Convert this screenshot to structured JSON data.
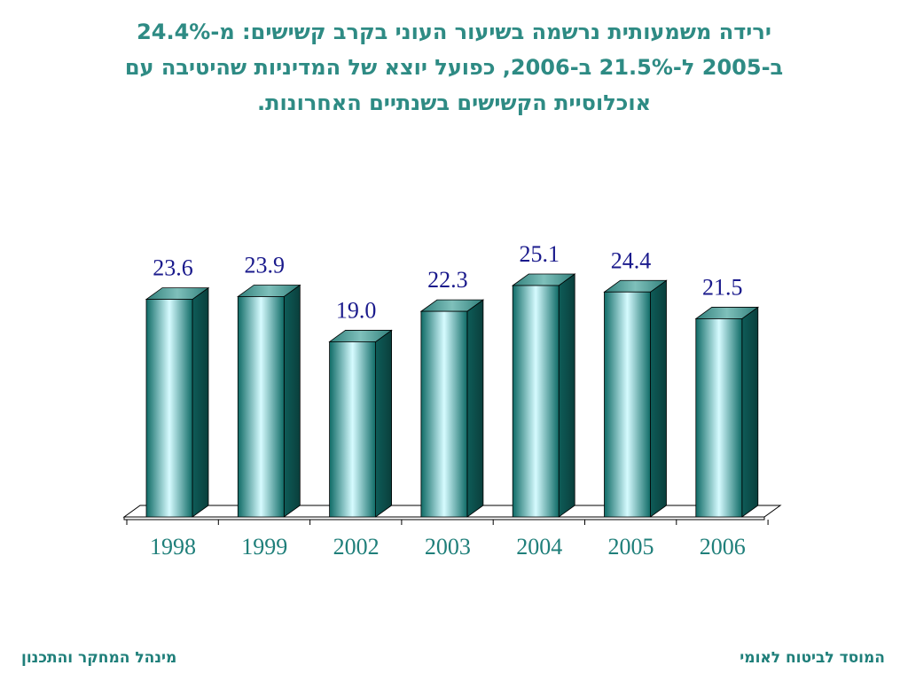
{
  "slide": {
    "title_lines": [
      "ירידה משמעותית נרשמה בשיעור העוני בקרב קשישים: מ-24.4%",
      "ב-2005 ל-21.5% ב-2006, כפועל יוצא של המדיניות שהיטיבה עם",
      "אוכלוסיית הקשישים בשנתיים האחרונות."
    ],
    "footer_left": "מינהל המחקר והתכנון",
    "footer_right": "המוסד לביטוח לאומי"
  },
  "chart_data": {
    "type": "bar",
    "style": "3d-cylinder-bars",
    "categories": [
      "1998",
      "1999",
      "2002",
      "2003",
      "2004",
      "2005",
      "2006"
    ],
    "values": [
      23.6,
      23.9,
      19.0,
      22.3,
      25.1,
      24.4,
      21.5
    ],
    "data_labels": [
      "23.6",
      "23.9",
      "19.0",
      "22.3",
      "25.1",
      "24.4",
      "21.5"
    ],
    "ylim": [
      0,
      25.1
    ],
    "grid": false,
    "colors": {
      "bar_edge": "#0f6b66",
      "bar_mid": "#d6fbff",
      "bar_side": "#0e5c58",
      "bar_top": "#4a9a95",
      "data_label": "#1a1a8c",
      "category_label": "#1f7f7a"
    }
  }
}
